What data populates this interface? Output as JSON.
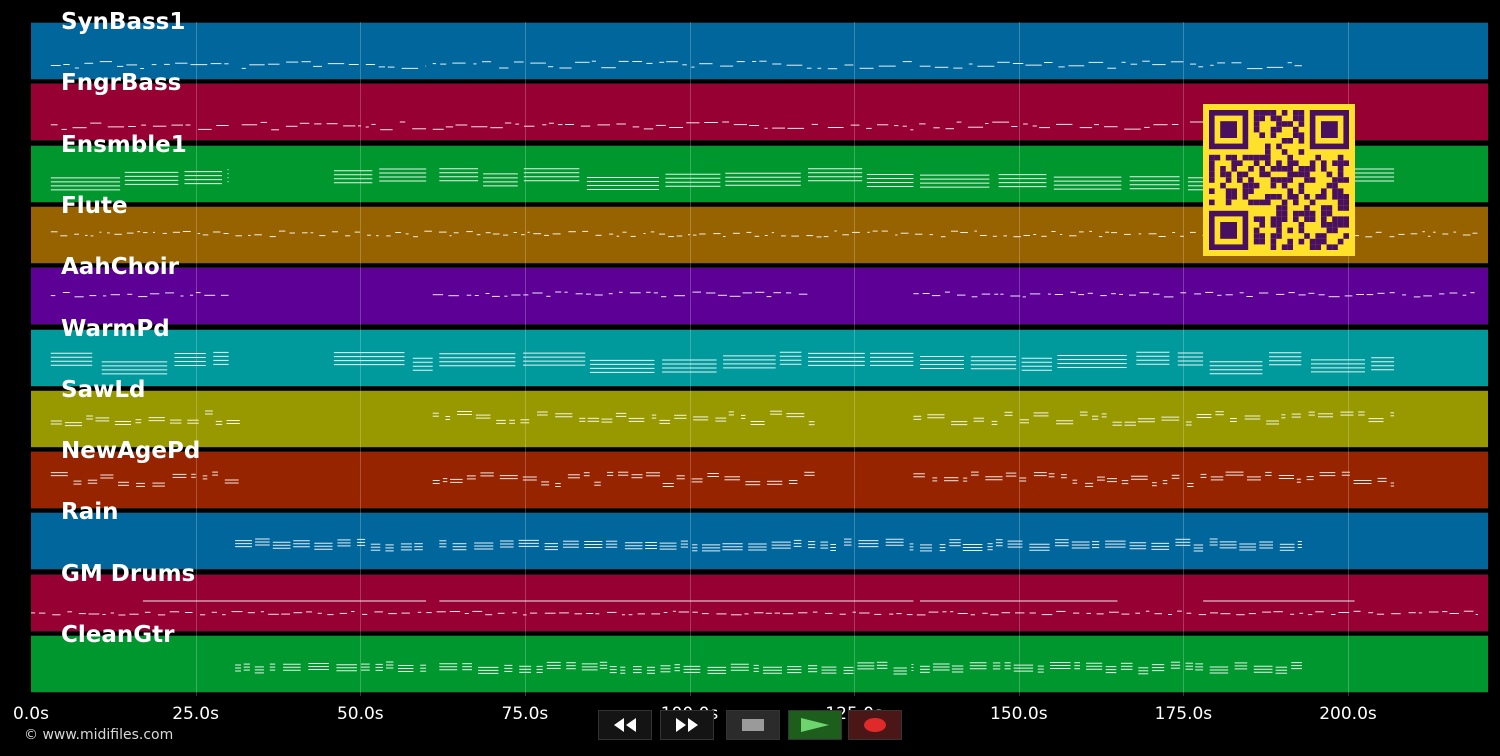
{
  "tracks": [
    {
      "name": "SynBass1",
      "color": "#01669c"
    },
    {
      "name": "FngrBass",
      "color": "#960033"
    },
    {
      "name": "Ensmble1",
      "color": "#00972e"
    },
    {
      "name": "Flute",
      "color": "#976200"
    },
    {
      "name": "AahChoir",
      "color": "#5c0096"
    },
    {
      "name": "WarmPd",
      "color": "#00999c"
    },
    {
      "name": "SawLd",
      "color": "#989900"
    },
    {
      "name": "NewAgePd",
      "color": "#962400"
    },
    {
      "name": "Rain",
      "color": "#01669c"
    },
    {
      "name": "GM Drums",
      "color": "#960033"
    },
    {
      "name": "CleanGtr",
      "color": "#00972e"
    }
  ],
  "timeline": {
    "ticks": [
      "0.0s",
      "25.0s",
      "50.0s",
      "75.0s",
      "100.0s",
      "125.0s",
      "150.0s",
      "175.0s",
      "200.0s"
    ],
    "duration_s": 221
  },
  "footer": {
    "copyright": "© www.midifiles.com"
  },
  "transport": {
    "buttons": [
      {
        "name": "rewind-button",
        "icon": "rewind-icon"
      },
      {
        "name": "fast-forward-button",
        "icon": "fast-forward-icon"
      },
      {
        "name": "stop-button",
        "icon": "stop-icon"
      },
      {
        "name": "play-button",
        "icon": "play-icon"
      },
      {
        "name": "record-button",
        "icon": "record-icon"
      }
    ]
  },
  "qr_code": {
    "icon": "qr-code-icon",
    "color": "#ffe02a",
    "dark": "#4a1060"
  }
}
